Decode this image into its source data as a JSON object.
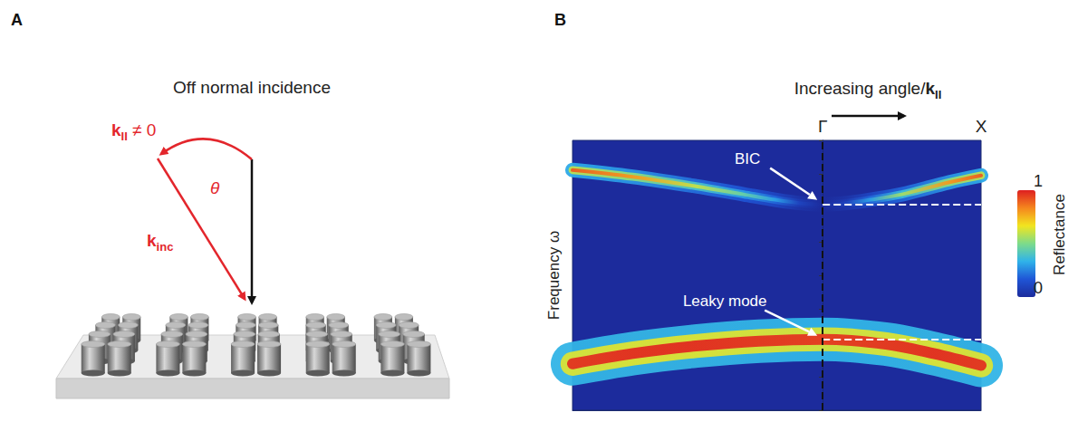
{
  "panel_a": {
    "label": "A",
    "title": "Off normal incidence",
    "incident_parallel": {
      "base": "k",
      "sub": "II",
      "suffix": " ≠ 0"
    },
    "angle": "θ",
    "incident": {
      "base": "k",
      "sub": "inc"
    }
  },
  "chart_data": {
    "type": "line",
    "label": "B",
    "title": {
      "text": "Increasing angle/",
      "base": "k",
      "sub": "II"
    },
    "ylabel": "Frequency ω",
    "xlim": [
      -1.58,
      1
    ],
    "xticks": [
      {
        "value": 0,
        "label": "Γ"
      },
      {
        "value": 1,
        "label": "X"
      }
    ],
    "ylim": [
      0,
      1
    ],
    "yticks": [
      0,
      0.125,
      0.25,
      0.375,
      0.5,
      0.625,
      0.75,
      0.875,
      1
    ],
    "tick_labels": "x",
    "grid": false,
    "dashed_line_x": 0,
    "series": [
      {
        "name": "BIC",
        "k": [
          -1.58,
          -1.2,
          -0.8,
          -0.5,
          -0.3,
          -0.15,
          0,
          0.15,
          0.3,
          0.5,
          0.8,
          1
        ],
        "omega": [
          0.89,
          0.865,
          0.83,
          0.8,
          0.78,
          0.768,
          0.763,
          0.768,
          0.78,
          0.8,
          0.845,
          0.87
        ],
        "reflectance": [
          0.9,
          0.8,
          0.6,
          0.45,
          0.3,
          0.1,
          0,
          0.1,
          0.3,
          0.55,
          0.8,
          0.9
        ]
      },
      {
        "name": "Leaky mode",
        "k": [
          -1.58,
          -1.2,
          -0.8,
          -0.4,
          0,
          0.4,
          0.7,
          1
        ],
        "omega": [
          0.172,
          0.21,
          0.238,
          0.256,
          0.263,
          0.245,
          0.21,
          0.166
        ],
        "reflectance": [
          0.97,
          0.98,
          0.98,
          0.97,
          0.96,
          0.97,
          0.98,
          0.97
        ]
      }
    ],
    "colorbar": {
      "title": "Reflectance",
      "range": [
        0,
        1
      ],
      "ticks": [
        0,
        1
      ]
    }
  }
}
